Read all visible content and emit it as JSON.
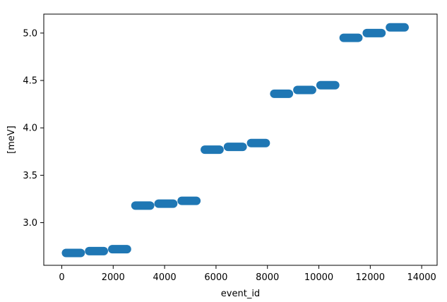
{
  "chart_data": {
    "type": "scatter",
    "xlabel": "event_id",
    "ylabel": "[meV]",
    "xlim": [
      -700,
      14600
    ],
    "ylim": [
      2.55,
      5.2
    ],
    "xticks": [
      0,
      2000,
      4000,
      6000,
      8000,
      10000,
      12000,
      14000
    ],
    "xtick_labels": [
      "0",
      "2000",
      "4000",
      "6000",
      "8000",
      "10000",
      "12000",
      "14000"
    ],
    "yticks": [
      3.0,
      3.5,
      4.0,
      4.5,
      5.0
    ],
    "ytick_labels": [
      "3.0",
      "3.5",
      "4.0",
      "4.5",
      "5.0"
    ],
    "grid": false,
    "color": "#1f77b4",
    "segments": [
      {
        "x_start": 0,
        "x_end": 900,
        "y": 2.68
      },
      {
        "x_start": 900,
        "x_end": 1800,
        "y": 2.7
      },
      {
        "x_start": 1800,
        "x_end": 2700,
        "y": 2.72
      },
      {
        "x_start": 2700,
        "x_end": 3600,
        "y": 3.18
      },
      {
        "x_start": 3600,
        "x_end": 4500,
        "y": 3.2
      },
      {
        "x_start": 4500,
        "x_end": 5400,
        "y": 3.23
      },
      {
        "x_start": 5400,
        "x_end": 6300,
        "y": 3.77
      },
      {
        "x_start": 6300,
        "x_end": 7200,
        "y": 3.8
      },
      {
        "x_start": 7200,
        "x_end": 8100,
        "y": 3.84
      },
      {
        "x_start": 8100,
        "x_end": 9000,
        "y": 4.36
      },
      {
        "x_start": 9000,
        "x_end": 9900,
        "y": 4.4
      },
      {
        "x_start": 9900,
        "x_end": 10800,
        "y": 4.45
      },
      {
        "x_start": 10800,
        "x_end": 11700,
        "y": 4.95
      },
      {
        "x_start": 11700,
        "x_end": 12600,
        "y": 5.0
      },
      {
        "x_start": 12600,
        "x_end": 13500,
        "y": 5.06
      }
    ]
  }
}
